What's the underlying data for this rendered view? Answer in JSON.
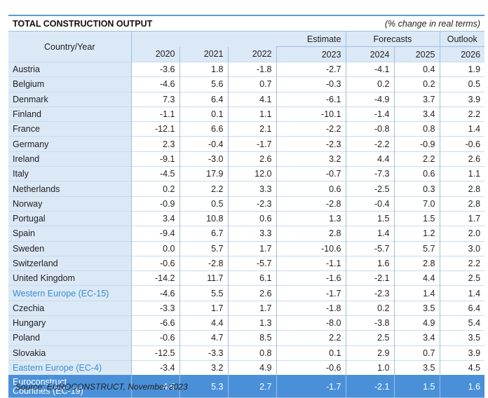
{
  "table": {
    "title": "TOTAL CONSTRUCTION OUTPUT",
    "subtitle": "(% change in real terms)",
    "row_header": "Country/Year",
    "group_headers": {
      "estimate": "Estimate",
      "forecasts": "Forecasts",
      "outlook": "Outlook"
    },
    "years": [
      "2020",
      "2021",
      "2022",
      "2023",
      "2024",
      "2025",
      "2026"
    ],
    "rows": [
      {
        "name": "Austria",
        "values": [
          "-3.6",
          "1.8",
          "-1.8",
          "-2.7",
          "-4.1",
          "0.4",
          "1.9"
        ]
      },
      {
        "name": "Belgium",
        "values": [
          "-4.6",
          "5.6",
          "0.7",
          "-0.3",
          "0.2",
          "0.2",
          "0.5"
        ]
      },
      {
        "name": "Denmark",
        "values": [
          "7.3",
          "6.4",
          "4.1",
          "-6.1",
          "-4.9",
          "3.7",
          "3.9"
        ]
      },
      {
        "name": "Finland",
        "values": [
          "-1.1",
          "0.1",
          "1.1",
          "-10.1",
          "-1.4",
          "3.4",
          "2.2"
        ]
      },
      {
        "name": "France",
        "values": [
          "-12.1",
          "6.6",
          "2.1",
          "-2.2",
          "-0.8",
          "0.8",
          "1.4"
        ]
      },
      {
        "name": "Germany",
        "values": [
          "2.3",
          "-0.4",
          "-1.7",
          "-2.3",
          "-2.2",
          "-0.9",
          "-0.6"
        ]
      },
      {
        "name": "Ireland",
        "values": [
          "-9.1",
          "-3.0",
          "2.6",
          "3.2",
          "4.4",
          "2.2",
          "2.6"
        ]
      },
      {
        "name": "Italy",
        "values": [
          "-4.5",
          "17.9",
          "12.0",
          "-0.7",
          "-7.3",
          "0.6",
          "1.1"
        ]
      },
      {
        "name": "Netherlands",
        "values": [
          "0.2",
          "2.2",
          "3.3",
          "0.6",
          "-2.5",
          "0.3",
          "2.8"
        ]
      },
      {
        "name": "Norway",
        "values": [
          "-0.9",
          "0.5",
          "-2.3",
          "-2.8",
          "-0.4",
          "7.0",
          "2.8"
        ]
      },
      {
        "name": "Portugal",
        "values": [
          "3.4",
          "10.8",
          "0.6",
          "1.3",
          "1.5",
          "1.5",
          "1.7"
        ]
      },
      {
        "name": "Spain",
        "values": [
          "-9.4",
          "6.7",
          "3.3",
          "2.8",
          "1.4",
          "1.2",
          "2.0"
        ]
      },
      {
        "name": "Sweden",
        "values": [
          "0.0",
          "5.7",
          "1.7",
          "-10.6",
          "-5.7",
          "5.7",
          "3.0"
        ]
      },
      {
        "name": "Switzerland",
        "values": [
          "-0.6",
          "-2.8",
          "-5.7",
          "-1.1",
          "1.6",
          "2.8",
          "2.2"
        ]
      },
      {
        "name": "United Kingdom",
        "values": [
          "-14.2",
          "11.7",
          "6.1",
          "-1.6",
          "-2.1",
          "4.4",
          "2.5"
        ]
      },
      {
        "name": "Western Europe (EC-15)",
        "values": [
          "-4.6",
          "5.5",
          "2.6",
          "-1.7",
          "-2.3",
          "1.4",
          "1.4"
        ],
        "kind": "sub"
      },
      {
        "name": "Czechia",
        "values": [
          "-3.3",
          "1.7",
          "1.7",
          "-1.8",
          "0.2",
          "3.5",
          "6.4"
        ]
      },
      {
        "name": "Hungary",
        "values": [
          "-6.6",
          "4.4",
          "1.3",
          "-8.0",
          "-3.8",
          "4.9",
          "5.4"
        ]
      },
      {
        "name": "Poland",
        "values": [
          "-0.6",
          "4.7",
          "8.5",
          "2.2",
          "2.5",
          "3.4",
          "3.5"
        ]
      },
      {
        "name": "Slovakia",
        "values": [
          "-12.5",
          "-3.3",
          "0.8",
          "0.1",
          "2.9",
          "0.7",
          "3.9"
        ]
      },
      {
        "name": "Eastern Europe (EC-4)",
        "values": [
          "-3.4",
          "3.2",
          "4.9",
          "-0.6",
          "1.0",
          "3.5",
          "4.5"
        ],
        "kind": "sub"
      },
      {
        "name_line1": "Euroconstruct",
        "name_line2": "Countries (EC-19)",
        "values": [
          "-4.5",
          "5.3",
          "2.7",
          "-1.7",
          "-2.1",
          "1.5",
          "1.6"
        ],
        "kind": "total"
      }
    ]
  },
  "source": "Source: EUROCONSTRUCT, November 2023",
  "colors": {
    "header_bg": "#dbe8f6",
    "accent": "#5b9bd5",
    "subtotal_text": "#3b8fd0",
    "total_bg": "#4a90d9"
  }
}
